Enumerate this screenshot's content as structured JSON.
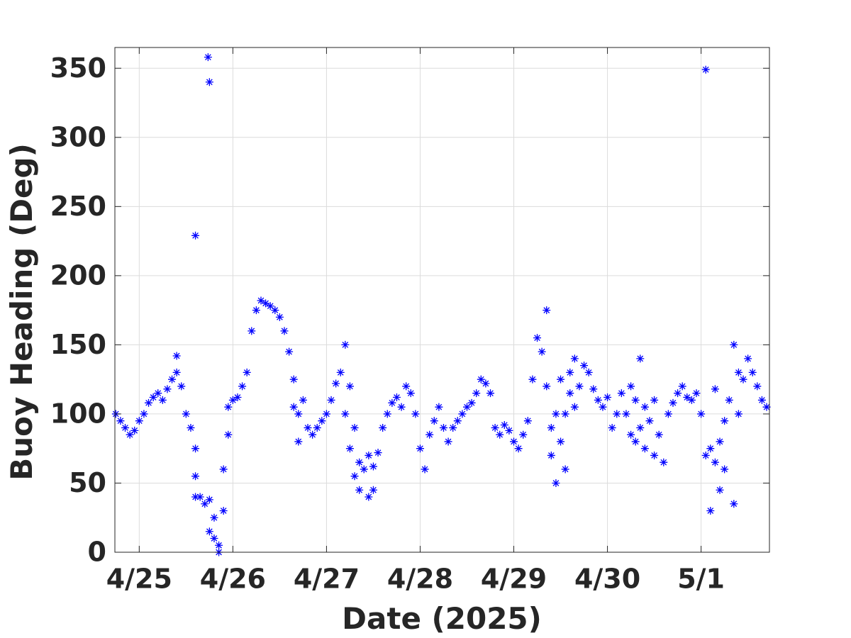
{
  "chart_data": {
    "type": "scatter",
    "marker": "*",
    "color": "#0000ff",
    "xlabel": "Date (2025)",
    "ylabel": "Buoy Heading (Deg)",
    "xlim": [
      -0.26,
      6.73
    ],
    "xticks": [
      {
        "value": 0,
        "label": "4/25"
      },
      {
        "value": 1,
        "label": "4/26"
      },
      {
        "value": 2,
        "label": "4/27"
      },
      {
        "value": 3,
        "label": "4/28"
      },
      {
        "value": 4,
        "label": "4/29"
      },
      {
        "value": 5,
        "label": "4/30"
      },
      {
        "value": 6,
        "label": "5/1"
      }
    ],
    "ylim": [
      0,
      365
    ],
    "yticks": [
      0,
      50,
      100,
      150,
      200,
      250,
      300,
      350
    ],
    "grid": true,
    "x": [
      -0.25,
      -0.2,
      -0.15,
      -0.1,
      -0.05,
      0,
      0.05,
      0.1,
      0.15,
      0.2,
      0.25,
      0.3,
      0.35,
      0.4,
      0.4,
      0.45,
      0.5,
      0.55,
      0.6,
      0.6,
      0.6,
      0.6,
      0.65,
      0.7,
      0.75,
      0.75,
      0.735,
      0.75,
      0.8,
      0.8,
      0.85,
      0.85,
      0.9,
      0.9,
      0.95,
      0.95,
      1.0,
      1.05,
      1.1,
      1.15,
      1.2,
      1.25,
      1.3,
      1.35,
      1.4,
      1.45,
      1.5,
      1.55,
      1.6,
      1.65,
      1.65,
      1.7,
      1.7,
      1.75,
      1.8,
      1.85,
      1.9,
      1.95,
      2.0,
      2.05,
      2.1,
      2.15,
      2.2,
      2.2,
      2.25,
      2.25,
      2.3,
      2.3,
      2.35,
      2.35,
      2.4,
      2.45,
      2.45,
      2.5,
      2.5,
      2.55,
      2.6,
      2.65,
      2.7,
      2.75,
      2.8,
      2.85,
      2.9,
      2.95,
      3.0,
      3.05,
      3.1,
      3.15,
      3.2,
      3.25,
      3.3,
      3.35,
      3.4,
      3.45,
      3.5,
      3.55,
      3.6,
      3.65,
      3.7,
      3.75,
      3.8,
      3.85,
      3.9,
      3.95,
      4.0,
      4.05,
      4.1,
      4.15,
      4.2,
      4.25,
      4.3,
      4.35,
      4.35,
      4.4,
      4.4,
      4.45,
      4.45,
      4.5,
      4.5,
      4.55,
      4.55,
      4.6,
      4.6,
      4.65,
      4.65,
      4.7,
      4.75,
      4.8,
      4.85,
      4.9,
      4.95,
      5.0,
      5.05,
      5.1,
      5.15,
      5.2,
      5.25,
      5.25,
      5.3,
      5.3,
      5.35,
      5.35,
      5.4,
      5.4,
      5.45,
      5.5,
      5.5,
      5.55,
      5.6,
      5.65,
      5.7,
      5.75,
      5.8,
      5.85,
      5.9,
      5.95,
      6.0,
      6.05,
      6.05,
      6.1,
      6.1,
      6.15,
      6.15,
      6.2,
      6.2,
      6.25,
      6.25,
      6.3,
      6.35,
      6.35,
      6.4,
      6.4,
      6.45,
      6.5,
      6.55,
      6.6,
      6.65,
      6.7
    ],
    "values": [
      100,
      95,
      90,
      85,
      88,
      95,
      100,
      108,
      112,
      115,
      110,
      118,
      125,
      130,
      142,
      120,
      100,
      90,
      229,
      55,
      40,
      75,
      40,
      35,
      15,
      38,
      358,
      340,
      25,
      10,
      0,
      5,
      30,
      60,
      85,
      105,
      110,
      112,
      120,
      130,
      160,
      175,
      182,
      180,
      178,
      175,
      170,
      160,
      145,
      105,
      125,
      80,
      100,
      110,
      90,
      85,
      90,
      95,
      100,
      110,
      122,
      130,
      150,
      100,
      75,
      120,
      90,
      55,
      45,
      65,
      60,
      40,
      70,
      45,
      62,
      72,
      90,
      100,
      108,
      112,
      105,
      120,
      115,
      100,
      75,
      60,
      85,
      95,
      105,
      90,
      80,
      90,
      95,
      100,
      105,
      108,
      115,
      125,
      122,
      115,
      90,
      85,
      92,
      88,
      80,
      75,
      85,
      95,
      125,
      155,
      145,
      175,
      120,
      90,
      70,
      50,
      100,
      80,
      125,
      100,
      60,
      115,
      130,
      105,
      140,
      120,
      135,
      130,
      118,
      110,
      105,
      112,
      90,
      100,
      115,
      100,
      120,
      85,
      110,
      80,
      140,
      90,
      75,
      105,
      95,
      70,
      110,
      85,
      65,
      100,
      108,
      115,
      120,
      112,
      110,
      115,
      100,
      70,
      349,
      30,
      75,
      65,
      118,
      45,
      80,
      95,
      60,
      110,
      150,
      35,
      100,
      130,
      125,
      140,
      130,
      120,
      110,
      105
    ]
  }
}
